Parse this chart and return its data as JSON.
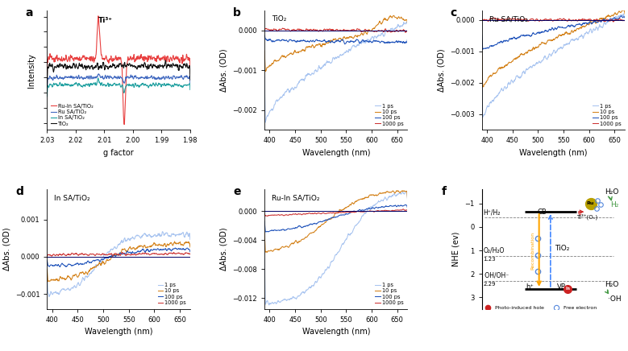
{
  "panel_a": {
    "xlabel": "g factor",
    "ylabel": "Intensity",
    "xlim": [
      2.03,
      1.98
    ],
    "xticks": [
      2.03,
      2.02,
      2.01,
      2.0,
      1.99,
      1.98
    ],
    "legend": [
      "Ru-In SA/TiO₂",
      "Ru SA/TiO₂",
      "In SA/TiO₂",
      "TiO₂"
    ],
    "colors": [
      "#e84040",
      "#4169c0",
      "#20a0a0",
      "#111111"
    ]
  },
  "panel_b": {
    "sample": "TiO₂",
    "xlabel": "Wavelength (nm)",
    "ylabel": "ΔAbs. (OD)",
    "xlim": [
      390,
      670
    ],
    "ylim": [
      -0.0025,
      0.0005
    ],
    "yticks": [
      0.0,
      -0.001,
      -0.002
    ],
    "legend": [
      "1 ps",
      "10 ps",
      "100 ps",
      "1000 ps"
    ],
    "colors": [
      "#a8c4f0",
      "#d4821a",
      "#2255bb",
      "#cc3333"
    ]
  },
  "panel_c": {
    "sample": "Ru SA/TiO₂",
    "xlabel": "Wavelength (nm)",
    "ylabel": "ΔAbs. (OD)",
    "xlim": [
      390,
      670
    ],
    "ylim": [
      -0.0035,
      0.0003
    ],
    "yticks": [
      0.0,
      -0.001,
      -0.002,
      -0.003
    ],
    "legend": [
      "1 ps",
      "10 ps",
      "100 ps",
      "1000 ps"
    ],
    "colors": [
      "#a8c4f0",
      "#d4821a",
      "#2255bb",
      "#cc3333"
    ]
  },
  "panel_d": {
    "sample": "In SA/TiO₂",
    "xlabel": "Wavelength (nm)",
    "ylabel": "ΔAbs. (OD)",
    "xlim": [
      390,
      670
    ],
    "ylim": [
      -0.0014,
      0.0018
    ],
    "yticks": [
      0.001,
      0.0,
      -0.001
    ],
    "legend": [
      "1 ps",
      "10 ps",
      "100 ps",
      "1000 ps"
    ],
    "colors": [
      "#a8c4f0",
      "#d4821a",
      "#2255bb",
      "#cc3333"
    ]
  },
  "panel_e": {
    "sample": "Ru-In SA/TiO₂",
    "xlabel": "Wavelength (nm)",
    "ylabel": "ΔAbs. (OD)",
    "xlim": [
      390,
      670
    ],
    "ylim": [
      -0.0135,
      0.003
    ],
    "yticks": [
      0.0,
      -0.004,
      -0.008,
      -0.012
    ],
    "legend": [
      "1 ps",
      "10 ps",
      "100 ps",
      "1000 ps"
    ],
    "colors": [
      "#a8c4f0",
      "#d4821a",
      "#2255bb",
      "#cc3333"
    ]
  },
  "panel_f": {
    "ylabel": "NHE (ev)",
    "cb_y": -0.65,
    "vb_y": 2.65,
    "h2_y": -0.41,
    "o2_y": 1.23,
    "oh_y": 2.29,
    "yticks": [
      -1,
      0,
      1,
      2,
      3
    ],
    "ylim": [
      3.5,
      -1.6
    ]
  }
}
